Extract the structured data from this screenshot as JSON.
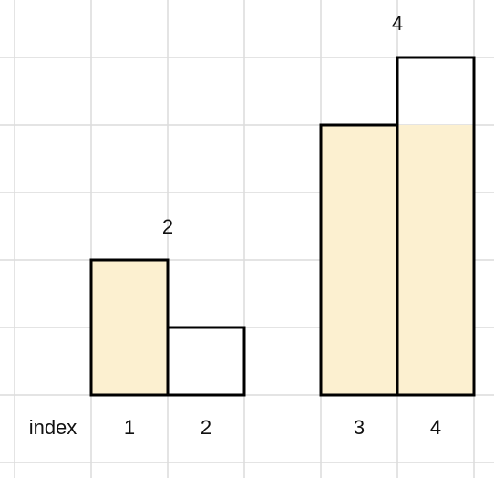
{
  "index_label": "index",
  "bars": [
    {
      "index": "1",
      "height": 2,
      "filled": 2
    },
    {
      "index": "2",
      "height": 1,
      "filled": 0
    },
    {
      "index": "3",
      "height": 4,
      "filled": 4
    },
    {
      "index": "4",
      "height": 5,
      "filled": 4
    }
  ],
  "annotations": [
    "2",
    "4"
  ]
}
